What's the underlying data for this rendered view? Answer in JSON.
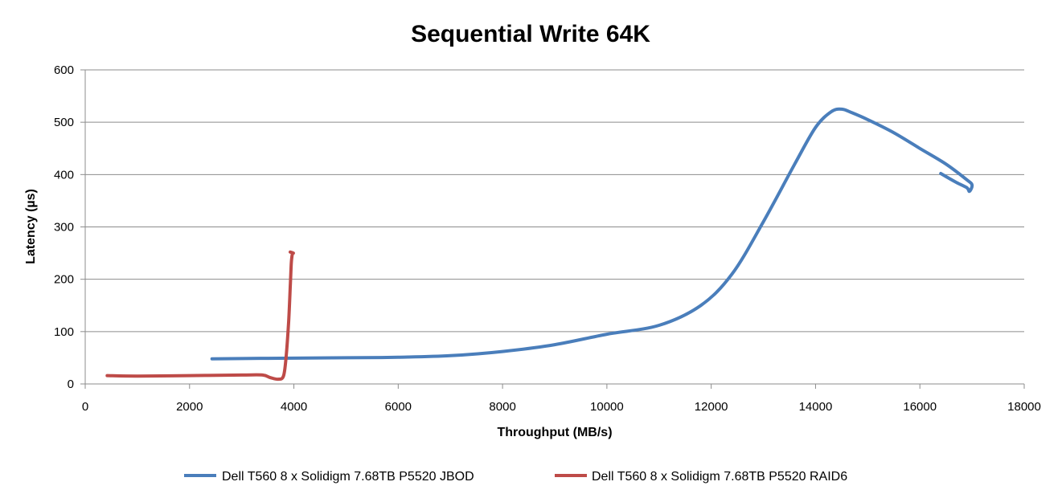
{
  "chart_data": {
    "type": "line",
    "title": "Sequential Write 64K",
    "xlabel": "Throughput  (MB/s)",
    "ylabel": "Latency (µs)",
    "xlim": [
      0,
      18000
    ],
    "ylim": [
      0,
      600
    ],
    "xticks": [
      "0",
      "2000",
      "4000",
      "6000",
      "8000",
      "10000",
      "12000",
      "14000",
      "16000",
      "18000"
    ],
    "yticks": [
      "0",
      "100",
      "200",
      "300",
      "400",
      "500",
      "600"
    ],
    "grid": "horizontal",
    "legend_position": "bottom",
    "series": [
      {
        "name": "Dell T560 8 x Solidigm 7.68TB P5520 JBOD",
        "color": "#4a7ebb",
        "x": [
          2430,
          3500,
          5000,
          6000,
          7000,
          8000,
          9000,
          10000,
          11000,
          11800,
          12400,
          13000,
          13600,
          14000,
          14300,
          14500,
          14700,
          15000,
          15500,
          16000,
          16500,
          16900,
          17000,
          16950,
          16900,
          16700,
          16400
        ],
        "y": [
          48,
          49,
          50,
          51,
          54,
          62,
          75,
          95,
          112,
          150,
          210,
          310,
          420,
          490,
          520,
          525,
          518,
          505,
          480,
          450,
          420,
          390,
          380,
          368,
          375,
          385,
          402
        ]
      },
      {
        "name": "Dell T560 8 x Solidigm 7.68TB P5520 RAID6",
        "color": "#be4b48",
        "x": [
          420,
          1000,
          2000,
          3000,
          3400,
          3550,
          3700,
          3800,
          3850,
          3900,
          3930,
          3950,
          3970,
          3990,
          3930
        ],
        "y": [
          16,
          15,
          16,
          17,
          17,
          12,
          9,
          15,
          50,
          120,
          185,
          230,
          248,
          250,
          252
        ]
      }
    ]
  }
}
